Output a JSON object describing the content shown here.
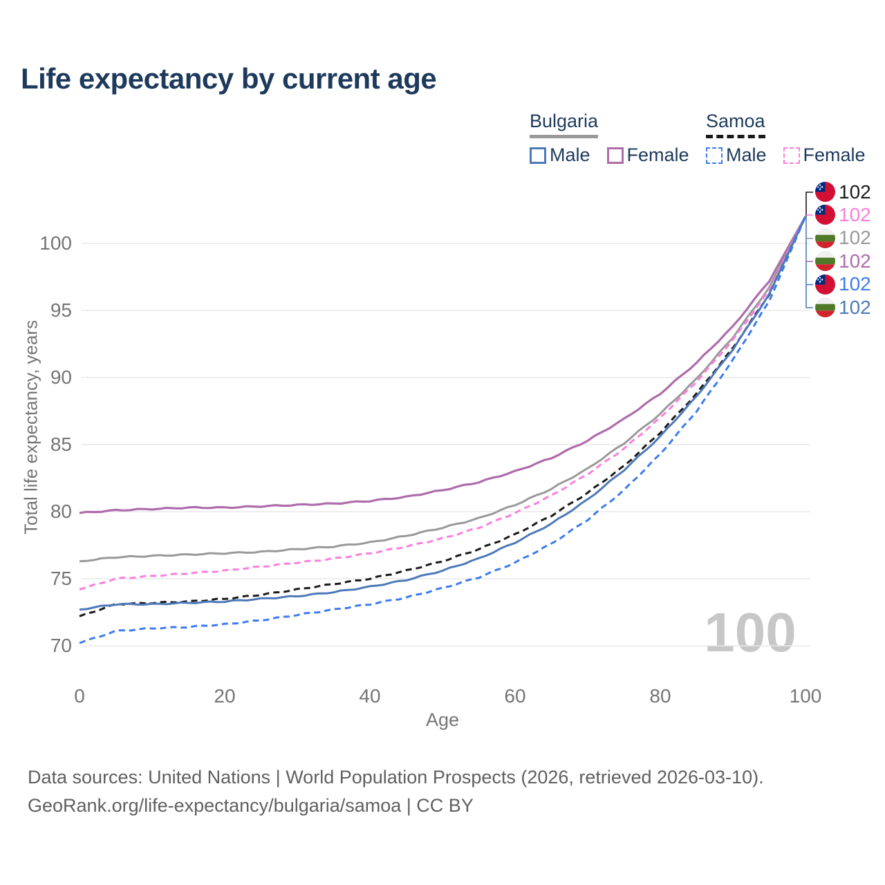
{
  "title": "Life expectancy by current age",
  "legend": {
    "groups": [
      {
        "label": "Bulgaria",
        "line_style": "solid",
        "items": [
          {
            "label": "Male",
            "color": "#4d79b8"
          },
          {
            "label": "Female",
            "color": "#ae6cab"
          }
        ]
      },
      {
        "label": "Samoa",
        "line_style": "dashed",
        "items": [
          {
            "label": "Male",
            "color": "#3d7ced"
          },
          {
            "label": "Female",
            "color": "#fb7edd"
          }
        ]
      }
    ]
  },
  "axes": {
    "x_label": "Age",
    "y_label": "Total life expectancy, years"
  },
  "watermark": "100",
  "right_labels": [
    {
      "country": "samoa",
      "flag": "samoa-flag-icon",
      "value": "102",
      "color": "#1a1a1a"
    },
    {
      "country": "samoa",
      "flag": "samoa-flag-icon",
      "value": "102",
      "color": "#fb7edd"
    },
    {
      "country": "bulgaria",
      "flag": "bulgaria-flag-icon",
      "value": "102",
      "color": "#999999"
    },
    {
      "country": "bulgaria",
      "flag": "bulgaria-flag-icon",
      "value": "102",
      "color": "#ae6cab"
    },
    {
      "country": "samoa",
      "flag": "samoa-flag-icon",
      "value": "102",
      "color": "#3d7ced"
    },
    {
      "country": "bulgaria",
      "flag": "bulgaria-flag-icon",
      "value": "102",
      "color": "#4d79b8"
    }
  ],
  "footer": {
    "line1": "Data sources: United Nations | World Population Prospects (2026, retrieved 2026-03-10).",
    "line2": "GeoRank.org/life-expectancy/bulgaria/samoa | CC BY"
  },
  "chart_data": {
    "type": "line",
    "title": "Life expectancy by current age",
    "xlabel": "Age",
    "ylabel": "Total life expectancy, years",
    "x": [
      0,
      5,
      10,
      15,
      20,
      25,
      30,
      35,
      40,
      45,
      50,
      55,
      60,
      65,
      70,
      75,
      80,
      85,
      90,
      95,
      100
    ],
    "xticks": [
      0,
      20,
      40,
      60,
      80,
      100
    ],
    "yticks": [
      70,
      75,
      80,
      85,
      90,
      95,
      100
    ],
    "xlim": [
      0,
      100
    ],
    "ylim": [
      69,
      103
    ],
    "grid": "horizontal",
    "legend_position": "top-right",
    "end_value_label": "102",
    "series": [
      {
        "name": "Bulgaria Female",
        "country": "bulgaria",
        "color": "#ae6cab",
        "dash": "solid",
        "width": 3.2,
        "values": [
          79.9,
          80.1,
          80.2,
          80.3,
          80.3,
          80.4,
          80.5,
          80.6,
          80.8,
          81.1,
          81.6,
          82.2,
          83.0,
          84.0,
          85.3,
          86.9,
          88.8,
          91.1,
          93.8,
          97.2,
          102.0
        ]
      },
      {
        "name": "Bulgaria",
        "country": "bulgaria",
        "color": "#999999",
        "dash": "solid",
        "width": 3,
        "values": [
          76.3,
          76.6,
          76.7,
          76.8,
          76.9,
          77.0,
          77.2,
          77.4,
          77.7,
          78.2,
          78.8,
          79.5,
          80.5,
          81.7,
          83.2,
          85.1,
          87.3,
          89.9,
          93.0,
          96.7,
          102.0
        ]
      },
      {
        "name": "Samoa Female",
        "country": "samoa",
        "color": "#fb7edd",
        "dash": "dashed",
        "width": 3,
        "values": [
          74.2,
          75.0,
          75.2,
          75.4,
          75.6,
          75.9,
          76.2,
          76.5,
          76.9,
          77.4,
          78.0,
          78.8,
          79.9,
          81.2,
          82.8,
          84.7,
          87.0,
          89.7,
          92.8,
          96.5,
          102.0
        ]
      },
      {
        "name": "Samoa",
        "country": "samoa",
        "color": "#1a1a1a",
        "dash": "dashed",
        "width": 3,
        "values": [
          72.2,
          73.1,
          73.2,
          73.3,
          73.5,
          73.8,
          74.2,
          74.6,
          75.0,
          75.6,
          76.3,
          77.2,
          78.3,
          79.7,
          81.4,
          83.4,
          85.9,
          88.8,
          92.2,
          96.2,
          102.0
        ]
      },
      {
        "name": "Bulgaria Male",
        "country": "bulgaria",
        "color": "#4d79b8",
        "dash": "solid",
        "width": 3,
        "values": [
          72.7,
          73.1,
          73.1,
          73.2,
          73.3,
          73.5,
          73.7,
          74.0,
          74.4,
          74.9,
          75.6,
          76.5,
          77.7,
          79.1,
          80.9,
          83.1,
          85.6,
          88.6,
          92.1,
          96.2,
          102.0
        ]
      },
      {
        "name": "Samoa Male",
        "country": "samoa",
        "color": "#3d7ced",
        "dash": "dashed",
        "width": 3,
        "values": [
          70.2,
          71.1,
          71.3,
          71.4,
          71.6,
          71.9,
          72.3,
          72.7,
          73.1,
          73.6,
          74.3,
          75.1,
          76.2,
          77.6,
          79.4,
          81.6,
          84.3,
          87.5,
          91.3,
          95.7,
          102.0
        ]
      }
    ]
  }
}
